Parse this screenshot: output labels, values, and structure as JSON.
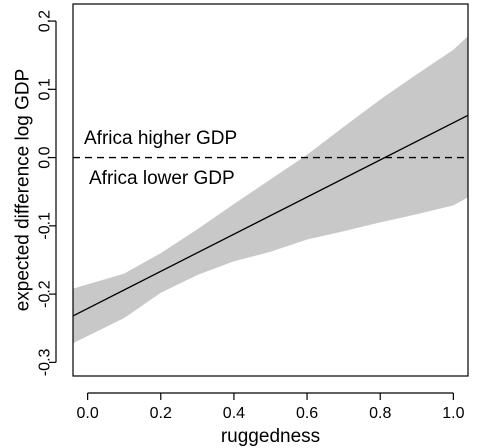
{
  "chart_data": {
    "type": "line",
    "title": "",
    "xlabel": "ruggedness",
    "ylabel": "expected difference log GDP",
    "xlim": [
      -0.04,
      1.04
    ],
    "ylim": [
      -0.32,
      0.225
    ],
    "x_ticks": [
      0.0,
      0.2,
      0.4,
      0.6,
      0.8,
      1.0
    ],
    "x_tick_labels": [
      "0.0",
      "0.2",
      "0.4",
      "0.6",
      "0.8",
      "1.0"
    ],
    "y_ticks": [
      -0.3,
      -0.2,
      -0.1,
      0.0,
      0.1,
      0.2
    ],
    "y_tick_labels": [
      "-0.3",
      "-0.2",
      "-0.1",
      "0.0",
      "0.1",
      "0.2"
    ],
    "grid": false,
    "colors": {
      "line": "#000000",
      "band": "#c8c8c8",
      "reference": "#000000"
    },
    "series": [
      {
        "kind": "mean",
        "x": [
          -0.04,
          1.04
        ],
        "y": [
          -0.232,
          0.062
        ]
      },
      {
        "kind": "interval",
        "x": [
          -0.04,
          0.1,
          0.2,
          0.3,
          0.4,
          0.5,
          0.6,
          0.7,
          0.8,
          0.9,
          1.0,
          1.04
        ],
        "upper": [
          -0.192,
          -0.17,
          -0.14,
          -0.105,
          -0.068,
          -0.032,
          0.004,
          0.045,
          0.085,
          0.122,
          0.158,
          0.178
        ],
        "lower": [
          -0.272,
          -0.235,
          -0.198,
          -0.172,
          -0.152,
          -0.138,
          -0.12,
          -0.108,
          -0.095,
          -0.083,
          -0.07,
          -0.058
        ]
      }
    ],
    "reference_line": {
      "y": 0.0,
      "style": "dashed"
    },
    "annotations": [
      {
        "text": "Africa higher GDP",
        "x": 0.2,
        "y": 0.02
      },
      {
        "text": "Africa lower GDP",
        "x": 0.2,
        "y": -0.018
      }
    ]
  }
}
